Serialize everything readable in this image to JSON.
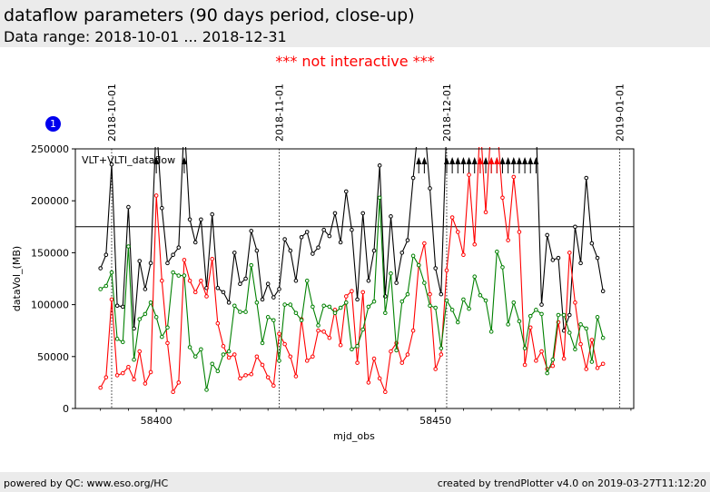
{
  "header": {
    "title": "dataflow parameters (90 days period, close-up)",
    "subtitle": "Data range: 2018-10-01 ... 2018-12-31"
  },
  "notice": "*** not interactive ***",
  "badge": "1",
  "footer": {
    "left": "powered by QC: www.eso.org/HC",
    "right": "created by trendPlotter v4.0 on 2019-03-27T11:12:20"
  },
  "colors": {
    "black": "#000000",
    "red": "#ff0000",
    "green": "#008000",
    "accent": "#0000ee"
  },
  "chart_data": {
    "type": "line",
    "title": "VLT+VLTI_dataflow",
    "xlabel": "mjd_obs",
    "ylabel": "dataVol_(MB)",
    "xlim": [
      58385.5,
      58485.5
    ],
    "ylim": [
      0,
      250000
    ],
    "xticks": [
      58400,
      58450
    ],
    "yticks": [
      0,
      50000,
      100000,
      150000,
      200000,
      250000
    ],
    "x_minor_step": 5,
    "reference_line": 175000,
    "date_markers": [
      {
        "x": 58392,
        "label": "2018-10-01"
      },
      {
        "x": 58422,
        "label": "2018-11-01"
      },
      {
        "x": 58452,
        "label": "2018-12-01"
      },
      {
        "x": 58483,
        "label": "2019-01-01"
      }
    ],
    "x": [
      58390,
      58391,
      58392,
      58393,
      58394,
      58395,
      58396,
      58397,
      58398,
      58399,
      58400,
      58401,
      58402,
      58403,
      58404,
      58405,
      58406,
      58407,
      58408,
      58409,
      58410,
      58411,
      58412,
      58413,
      58414,
      58415,
      58416,
      58417,
      58418,
      58419,
      58420,
      58421,
      58422,
      58423,
      58424,
      58425,
      58426,
      58427,
      58428,
      58429,
      58430,
      58431,
      58432,
      58433,
      58434,
      58435,
      58436,
      58437,
      58438,
      58439,
      58440,
      58441,
      58442,
      58443,
      58444,
      58445,
      58446,
      58447,
      58448,
      58449,
      58450,
      58451,
      58452,
      58453,
      58454,
      58455,
      58456,
      58457,
      58458,
      58459,
      58460,
      58461,
      58462,
      58463,
      58464,
      58465,
      58466,
      58467,
      58468,
      58469,
      58470,
      58471,
      58472,
      58473,
      58474,
      58475,
      58476,
      58477,
      58478,
      58479,
      58480
    ],
    "series": [
      {
        "color": "#000000",
        "values": [
          135000,
          148000,
          235000,
          99000,
          98000,
          194000,
          77000,
          142000,
          115000,
          140000,
          270000,
          193000,
          140000,
          148000,
          155000,
          270000,
          182000,
          160000,
          182000,
          116000,
          187000,
          116000,
          112000,
          102000,
          150000,
          120000,
          125000,
          171000,
          152000,
          105000,
          120000,
          107000,
          115000,
          163000,
          152000,
          123000,
          165000,
          170000,
          149000,
          155000,
          172000,
          166000,
          188000,
          160000,
          209000,
          172000,
          105000,
          188000,
          123000,
          152000,
          234000,
          108000,
          185000,
          121000,
          150000,
          162000,
          222000,
          265000,
          265000,
          212000,
          135000,
          110000,
          265000,
          265000,
          265000,
          265000,
          265000,
          265000,
          265000,
          265000,
          265000,
          265000,
          265000,
          265000,
          265000,
          265000,
          265000,
          265000,
          265000,
          100000,
          167000,
          143000,
          145000,
          75000,
          90000,
          175000,
          140000,
          222000,
          159000,
          145000,
          113000
        ]
      },
      {
        "color": "#ff0000",
        "values": [
          20000,
          30000,
          105000,
          32000,
          34000,
          40000,
          28000,
          55000,
          24000,
          35000,
          205000,
          123000,
          63000,
          16000,
          25000,
          143000,
          123000,
          112000,
          123000,
          108000,
          144000,
          82000,
          60000,
          49000,
          52000,
          29000,
          32000,
          33000,
          50000,
          42000,
          30000,
          22000,
          72000,
          62000,
          50000,
          31000,
          86000,
          46000,
          50000,
          75000,
          74000,
          68000,
          95000,
          61000,
          108000,
          113000,
          44000,
          112000,
          25000,
          48000,
          29000,
          16000,
          55000,
          63000,
          44000,
          52000,
          75000,
          138000,
          159000,
          110000,
          38000,
          52000,
          133000,
          184000,
          170000,
          148000,
          225000,
          158000,
          265000,
          189000,
          265000,
          265000,
          203000,
          162000,
          223000,
          170000,
          42000,
          78000,
          46000,
          55000,
          38000,
          41000,
          83000,
          48000,
          150000,
          102000,
          62000,
          38000,
          66000,
          39000,
          43000
        ]
      },
      {
        "color": "#008000",
        "values": [
          115000,
          118000,
          131000,
          67000,
          64000,
          156000,
          47000,
          86000,
          91000,
          102000,
          88000,
          69000,
          78000,
          131000,
          128000,
          128000,
          59000,
          50000,
          57000,
          18000,
          43000,
          36000,
          52000,
          55000,
          99000,
          93000,
          93000,
          138000,
          102000,
          63000,
          88000,
          85000,
          46000,
          100000,
          100000,
          92000,
          85000,
          123000,
          98000,
          80000,
          99000,
          98000,
          92000,
          97000,
          102000,
          57000,
          60000,
          76000,
          98000,
          103000,
          203000,
          92000,
          130000,
          56000,
          103000,
          110000,
          147000,
          138000,
          121000,
          99000,
          97000,
          58000,
          104000,
          95000,
          83000,
          105000,
          96000,
          127000,
          109000,
          104000,
          74000,
          151000,
          136000,
          81000,
          102000,
          84000,
          58000,
          89000,
          95000,
          91000,
          34000,
          47000,
          90000,
          90000,
          73000,
          57000,
          81000,
          77000,
          45000,
          88000,
          68000
        ]
      }
    ]
  }
}
